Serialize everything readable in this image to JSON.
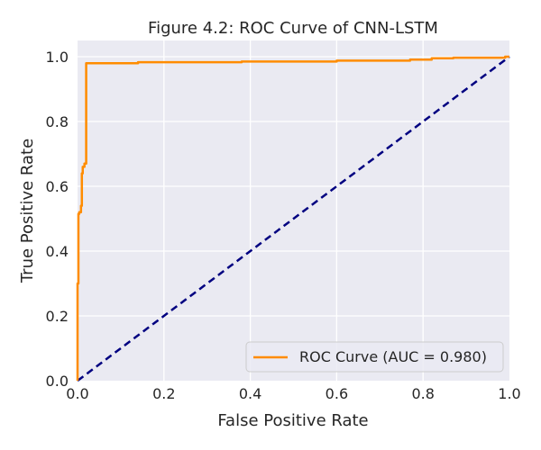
{
  "chart_data": {
    "type": "line",
    "title": "Figure 4.2: ROC Curve of CNN-LSTM",
    "xlabel": "False Positive Rate",
    "ylabel": "True Positive Rate",
    "xlim": [
      0.0,
      1.0
    ],
    "ylim": [
      0.0,
      1.05
    ],
    "x_ticks": [
      "0.0",
      "0.2",
      "0.4",
      "0.6",
      "0.8",
      "1.0"
    ],
    "y_ticks": [
      "0.0",
      "0.2",
      "0.4",
      "0.6",
      "0.8",
      "1.0"
    ],
    "grid": true,
    "legend_position": "lower-right",
    "colors": {
      "plot_background": "#EAEAF2",
      "grid": "#FFFFFF",
      "roc": "#FF8C00",
      "diagonal": "#000080"
    },
    "series": [
      {
        "name": "ROC Curve (AUC = 0.980)",
        "style": "solid",
        "color": "#FF8C00",
        "x": [
          0.0,
          0.0,
          0.002,
          0.002,
          0.004,
          0.004,
          0.008,
          0.008,
          0.01,
          0.01,
          0.012,
          0.012,
          0.016,
          0.016,
          0.02,
          0.02,
          0.14,
          0.14,
          0.38,
          0.38,
          0.6,
          0.6,
          0.77,
          0.77,
          0.82,
          0.82,
          0.87,
          0.87,
          0.99,
          0.99,
          1.0
        ],
        "y": [
          0.0,
          0.3,
          0.3,
          0.515,
          0.515,
          0.52,
          0.52,
          0.54,
          0.54,
          0.64,
          0.64,
          0.66,
          0.66,
          0.67,
          0.67,
          0.98,
          0.98,
          0.983,
          0.983,
          0.985,
          0.985,
          0.988,
          0.988,
          0.991,
          0.991,
          0.995,
          0.995,
          0.997,
          0.997,
          1.0,
          1.0
        ]
      },
      {
        "style": "dashed",
        "color": "#000080",
        "x": [
          0.0,
          1.0
        ],
        "y": [
          0.0,
          1.0
        ]
      }
    ]
  }
}
